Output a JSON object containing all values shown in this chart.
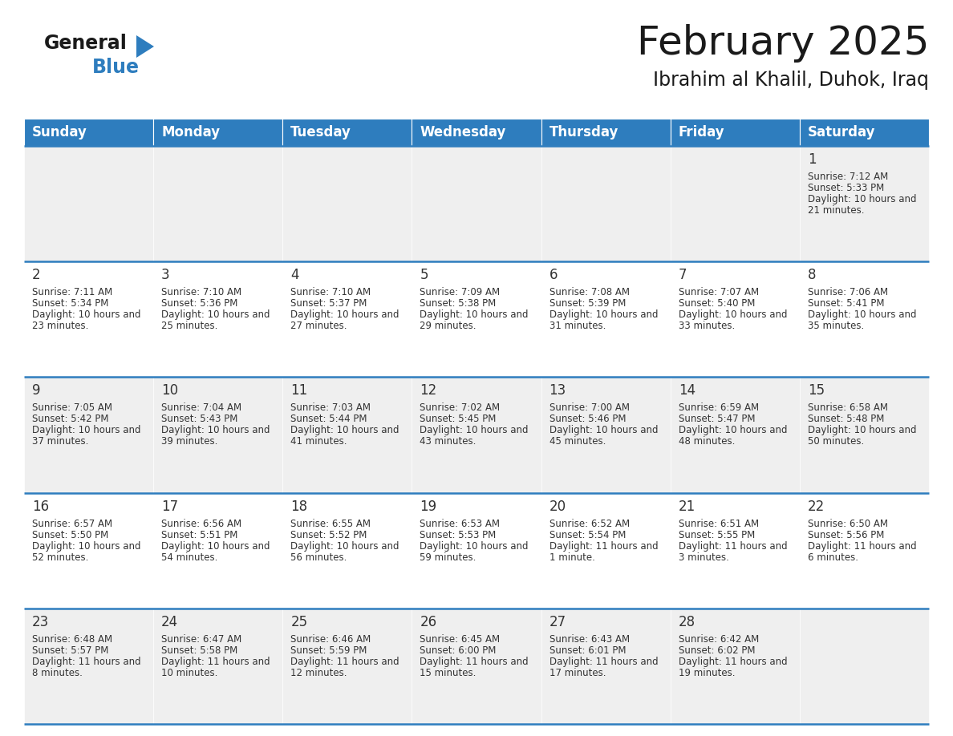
{
  "title": "February 2025",
  "subtitle": "Ibrahim al Khalil, Duhok, Iraq",
  "header_bg": "#2E7DBE",
  "header_text_color": "#FFFFFF",
  "day_names": [
    "Sunday",
    "Monday",
    "Tuesday",
    "Wednesday",
    "Thursday",
    "Friday",
    "Saturday"
  ],
  "row_bg_even": "#EFEFEF",
  "row_bg_odd": "#FFFFFF",
  "separator_color": "#2E7DBE",
  "text_color": "#333333",
  "days": [
    {
      "day": 1,
      "col": 6,
      "row": 0,
      "sunrise": "7:12 AM",
      "sunset": "5:33 PM",
      "daylight": "10 hours and 21 minutes."
    },
    {
      "day": 2,
      "col": 0,
      "row": 1,
      "sunrise": "7:11 AM",
      "sunset": "5:34 PM",
      "daylight": "10 hours and 23 minutes."
    },
    {
      "day": 3,
      "col": 1,
      "row": 1,
      "sunrise": "7:10 AM",
      "sunset": "5:36 PM",
      "daylight": "10 hours and 25 minutes."
    },
    {
      "day": 4,
      "col": 2,
      "row": 1,
      "sunrise": "7:10 AM",
      "sunset": "5:37 PM",
      "daylight": "10 hours and 27 minutes."
    },
    {
      "day": 5,
      "col": 3,
      "row": 1,
      "sunrise": "7:09 AM",
      "sunset": "5:38 PM",
      "daylight": "10 hours and 29 minutes."
    },
    {
      "day": 6,
      "col": 4,
      "row": 1,
      "sunrise": "7:08 AM",
      "sunset": "5:39 PM",
      "daylight": "10 hours and 31 minutes."
    },
    {
      "day": 7,
      "col": 5,
      "row": 1,
      "sunrise": "7:07 AM",
      "sunset": "5:40 PM",
      "daylight": "10 hours and 33 minutes."
    },
    {
      "day": 8,
      "col": 6,
      "row": 1,
      "sunrise": "7:06 AM",
      "sunset": "5:41 PM",
      "daylight": "10 hours and 35 minutes."
    },
    {
      "day": 9,
      "col": 0,
      "row": 2,
      "sunrise": "7:05 AM",
      "sunset": "5:42 PM",
      "daylight": "10 hours and 37 minutes."
    },
    {
      "day": 10,
      "col": 1,
      "row": 2,
      "sunrise": "7:04 AM",
      "sunset": "5:43 PM",
      "daylight": "10 hours and 39 minutes."
    },
    {
      "day": 11,
      "col": 2,
      "row": 2,
      "sunrise": "7:03 AM",
      "sunset": "5:44 PM",
      "daylight": "10 hours and 41 minutes."
    },
    {
      "day": 12,
      "col": 3,
      "row": 2,
      "sunrise": "7:02 AM",
      "sunset": "5:45 PM",
      "daylight": "10 hours and 43 minutes."
    },
    {
      "day": 13,
      "col": 4,
      "row": 2,
      "sunrise": "7:00 AM",
      "sunset": "5:46 PM",
      "daylight": "10 hours and 45 minutes."
    },
    {
      "day": 14,
      "col": 5,
      "row": 2,
      "sunrise": "6:59 AM",
      "sunset": "5:47 PM",
      "daylight": "10 hours and 48 minutes."
    },
    {
      "day": 15,
      "col": 6,
      "row": 2,
      "sunrise": "6:58 AM",
      "sunset": "5:48 PM",
      "daylight": "10 hours and 50 minutes."
    },
    {
      "day": 16,
      "col": 0,
      "row": 3,
      "sunrise": "6:57 AM",
      "sunset": "5:50 PM",
      "daylight": "10 hours and 52 minutes."
    },
    {
      "day": 17,
      "col": 1,
      "row": 3,
      "sunrise": "6:56 AM",
      "sunset": "5:51 PM",
      "daylight": "10 hours and 54 minutes."
    },
    {
      "day": 18,
      "col": 2,
      "row": 3,
      "sunrise": "6:55 AM",
      "sunset": "5:52 PM",
      "daylight": "10 hours and 56 minutes."
    },
    {
      "day": 19,
      "col": 3,
      "row": 3,
      "sunrise": "6:53 AM",
      "sunset": "5:53 PM",
      "daylight": "10 hours and 59 minutes."
    },
    {
      "day": 20,
      "col": 4,
      "row": 3,
      "sunrise": "6:52 AM",
      "sunset": "5:54 PM",
      "daylight": "11 hours and 1 minute."
    },
    {
      "day": 21,
      "col": 5,
      "row": 3,
      "sunrise": "6:51 AM",
      "sunset": "5:55 PM",
      "daylight": "11 hours and 3 minutes."
    },
    {
      "day": 22,
      "col": 6,
      "row": 3,
      "sunrise": "6:50 AM",
      "sunset": "5:56 PM",
      "daylight": "11 hours and 6 minutes."
    },
    {
      "day": 23,
      "col": 0,
      "row": 4,
      "sunrise": "6:48 AM",
      "sunset": "5:57 PM",
      "daylight": "11 hours and 8 minutes."
    },
    {
      "day": 24,
      "col": 1,
      "row": 4,
      "sunrise": "6:47 AM",
      "sunset": "5:58 PM",
      "daylight": "11 hours and 10 minutes."
    },
    {
      "day": 25,
      "col": 2,
      "row": 4,
      "sunrise": "6:46 AM",
      "sunset": "5:59 PM",
      "daylight": "11 hours and 12 minutes."
    },
    {
      "day": 26,
      "col": 3,
      "row": 4,
      "sunrise": "6:45 AM",
      "sunset": "6:00 PM",
      "daylight": "11 hours and 15 minutes."
    },
    {
      "day": 27,
      "col": 4,
      "row": 4,
      "sunrise": "6:43 AM",
      "sunset": "6:01 PM",
      "daylight": "11 hours and 17 minutes."
    },
    {
      "day": 28,
      "col": 5,
      "row": 4,
      "sunrise": "6:42 AM",
      "sunset": "6:02 PM",
      "daylight": "11 hours and 19 minutes."
    }
  ]
}
